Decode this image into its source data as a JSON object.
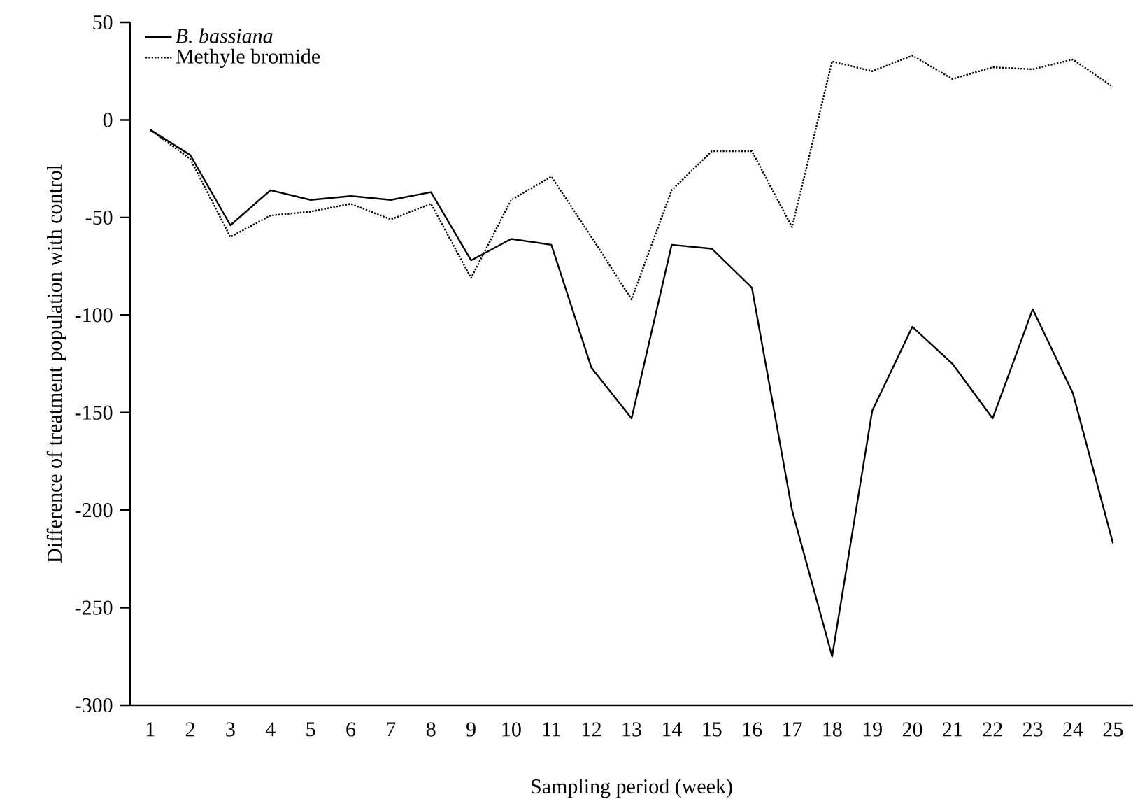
{
  "chart_data": {
    "type": "line",
    "xlabel": "Sampling period (week)",
    "ylabel": "Difference of treatment population with control",
    "categories": [
      "1",
      "2",
      "3",
      "4",
      "5",
      "6",
      "7",
      "8",
      "9",
      "10",
      "11",
      "12",
      "13",
      "14",
      "15",
      "16",
      "17",
      "18",
      "19",
      "20",
      "21",
      "22",
      "23",
      "24",
      "25"
    ],
    "series": [
      {
        "name": "*B. bassiana*",
        "color": "#000000",
        "line_style": "solid",
        "values": [
          -5,
          -18,
          -54,
          -36,
          -41,
          -39,
          -41,
          -37,
          -72,
          -61,
          -64,
          -127,
          -153,
          -64,
          -66,
          -86,
          -200,
          -275,
          -149,
          -106,
          -125,
          -153,
          -97,
          -140,
          -217
        ]
      },
      {
        "name": "Methyle bromide",
        "color": "#000000",
        "line_style": "dotted",
        "values": [
          -5,
          -20,
          -60,
          -49,
          -47,
          -43,
          -51,
          -43,
          -81,
          -41,
          -29,
          -60,
          -92,
          -36,
          -16,
          -16,
          -55,
          30,
          25,
          33,
          21,
          27,
          26,
          31,
          17
        ]
      }
    ],
    "ylim": [
      -300,
      50
    ],
    "yticks": [
      -300,
      -250,
      -200,
      -150,
      -100,
      -50,
      0,
      50
    ],
    "grid": false,
    "legend": "top left",
    "marker": "none"
  }
}
